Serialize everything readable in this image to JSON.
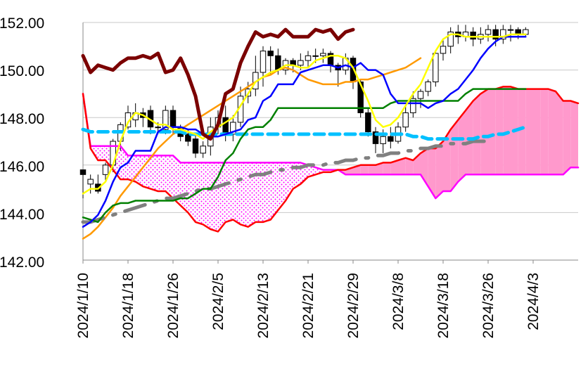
{
  "chart_data": {
    "type": "line",
    "title": "",
    "ylim": [
      142,
      152
    ],
    "y_ticks": [
      "142.00",
      "144.00",
      "146.00",
      "148.00",
      "150.00",
      "152.00"
    ],
    "x_ticks": [
      "2024/1/10",
      "2024/1/18",
      "2024/1/26",
      "2024/2/5",
      "2024/2/13",
      "2024/2/21",
      "2024/2/29",
      "2024/3/8",
      "2024/3/18",
      "2024/3/26",
      "2024/4/3"
    ],
    "grid": true,
    "legend": "none",
    "colors": {
      "tenkan": "#0000ff",
      "kijun": "#008000",
      "chikou": "#7b0000",
      "span_a": "#ff0000",
      "span_b": "#ff00ff",
      "cloud_fill": "#ff99cc",
      "ma_short": "#ffff00",
      "ma_long": "#ff9900",
      "dashed_blue": "#00c0ff",
      "dashed_gray": "#808080"
    },
    "series": [
      {
        "id": "tenkan",
        "values": [
          143.4,
          143.6,
          143.9,
          144.5,
          145.3,
          145.9,
          146.1,
          146.6,
          146.6,
          146.6,
          147.4,
          147.6,
          147.6,
          147.6,
          147.5,
          147.5,
          147.3,
          147.2,
          147.2,
          147.3,
          147.4,
          147.5,
          147.9,
          148.0,
          148.7,
          148.9,
          149.4,
          149.4,
          149.4,
          149.9,
          150.0,
          150.1,
          150.2,
          150.2,
          150.1,
          150.2,
          150.1,
          150.3,
          150.0,
          150.0,
          149.8,
          149.0,
          148.6,
          148.6,
          148.6,
          148.6,
          148.4,
          148.6,
          148.7,
          149.0,
          149.2,
          149.6,
          150.0,
          150.5,
          150.9,
          151.2,
          151.4,
          151.4,
          151.4,
          151.4
        ]
      },
      {
        "id": "kijun",
        "values": [
          143.8,
          143.7,
          143.6,
          144.0,
          144.3,
          144.4,
          144.4,
          144.5,
          144.5,
          144.5,
          144.5,
          144.5,
          144.5,
          144.6,
          144.6,
          144.8,
          145.0,
          145.0,
          145.5,
          146.2,
          146.5,
          147.1,
          147.5,
          147.6,
          147.6,
          147.9,
          148.4,
          148.4,
          148.4,
          148.4,
          148.4,
          148.4,
          148.4,
          148.4,
          148.4,
          148.4,
          148.4,
          148.4,
          148.4,
          148.4,
          148.4,
          148.6,
          148.7,
          148.7,
          148.7,
          148.7,
          148.7,
          148.7,
          148.7,
          148.7,
          148.7,
          149.0,
          149.2,
          149.2,
          149.2,
          149.2,
          149.2,
          149.2,
          149.2,
          149.2
        ]
      },
      {
        "id": "chikou",
        "values": [
          150.6,
          149.9,
          150.2,
          150.1,
          150.0,
          150.3,
          150.5,
          150.5,
          150.6,
          150.5,
          150.7,
          149.9,
          150.0,
          150.5,
          149.8,
          148.9,
          147.3,
          147.1,
          147.7,
          149.0,
          149.2,
          150.3,
          151.0,
          151.6,
          151.4,
          151.5,
          151.4,
          151.7,
          151.4,
          151.4,
          151.4,
          151.7,
          151.6,
          151.7,
          151.3,
          151.6,
          151.7
        ]
      },
      {
        "id": "span_a",
        "x_offset": 0,
        "values": [
          149.0,
          146.7,
          146.2,
          146.2,
          145.8,
          145.4,
          145.4,
          145.3,
          145.1,
          145.0,
          144.9,
          144.9,
          144.6,
          144.3,
          144.0,
          143.6,
          143.5,
          143.3,
          143.2,
          143.6,
          143.7,
          143.5,
          143.4,
          143.6,
          143.6,
          143.7,
          144.1,
          144.5,
          145.0,
          145.2,
          145.5,
          145.6,
          145.7,
          145.7,
          145.8,
          145.8,
          145.9,
          146.0,
          146.0,
          146.0,
          146.1,
          146.1,
          146.2,
          146.3,
          146.2,
          146.5,
          146.7,
          146.7,
          147.0,
          147.5,
          147.9,
          148.3,
          148.7,
          149.0,
          149.2,
          149.2,
          149.3,
          149.3,
          149.2,
          149.2,
          149.2,
          149.2,
          149.2,
          149.1,
          148.7,
          148.7,
          148.6
        ]
      },
      {
        "id": "span_b",
        "x_offset": 0,
        "values": [
          149.0,
          146.8,
          146.8,
          146.8,
          146.8,
          146.8,
          146.4,
          146.4,
          146.4,
          146.4,
          146.4,
          146.4,
          146.4,
          146.1,
          146.1,
          146.1,
          146.1,
          146.1,
          146.1,
          146.1,
          146.1,
          146.1,
          146.1,
          146.1,
          146.1,
          146.1,
          146.1,
          146.1,
          146.1,
          146.1,
          146.0,
          145.9,
          145.8,
          145.8,
          145.8,
          145.6,
          145.6,
          145.6,
          145.6,
          145.6,
          145.6,
          145.6,
          145.6,
          145.6,
          145.6,
          145.6,
          145.1,
          144.6,
          144.9,
          144.9,
          145.3,
          145.6,
          145.6,
          145.6,
          145.6,
          145.6,
          145.6,
          145.6,
          145.6,
          145.6,
          145.6,
          145.6,
          145.6,
          145.6,
          145.6,
          145.9,
          145.9
        ]
      },
      {
        "id": "ma_short",
        "values": [
          144.8,
          145.0,
          145.0,
          145.3,
          146.0,
          147.0,
          147.8,
          148.2,
          148.1,
          147.9,
          147.7,
          147.7,
          147.5,
          147.5,
          147.4,
          147.3,
          147.1,
          147.4,
          147.6,
          147.8,
          148.0,
          148.5,
          149.0,
          149.5,
          149.7,
          149.9,
          150.0,
          150.2,
          150.2,
          150.1,
          150.1,
          150.4,
          150.5,
          150.6,
          150.6,
          150.5,
          150.1,
          149.4,
          148.7,
          147.9,
          147.6,
          147.7,
          148.0,
          148.5,
          149.0,
          149.4,
          150.1,
          150.8,
          151.3,
          151.5,
          151.5,
          151.4,
          151.4,
          151.4,
          151.4,
          151.4,
          151.4,
          151.5,
          151.5,
          151.5
        ]
      },
      {
        "id": "ma_long",
        "values": [
          142.9,
          143.1,
          143.4,
          143.8,
          144.2,
          144.7,
          145.1,
          145.5,
          145.9,
          146.3,
          146.7,
          147.0,
          147.3,
          147.5,
          147.7,
          147.9,
          148.1,
          148.3,
          148.5,
          148.7,
          148.9,
          149.1,
          149.3,
          149.5,
          149.7,
          149.8,
          150.0,
          150.1,
          150.0,
          149.8,
          149.6,
          149.5,
          149.4,
          149.4,
          149.4,
          149.5,
          149.5,
          149.6,
          149.6,
          149.7,
          149.8,
          149.9,
          150.0,
          150.1,
          150.3,
          150.5
        ]
      },
      {
        "id": "dashed_blue",
        "values": [
          147.5,
          147.4,
          147.4,
          147.4,
          147.4,
          147.4,
          147.4,
          147.4,
          147.4,
          147.4,
          147.4,
          147.4,
          147.4,
          147.4,
          147.3,
          147.3,
          147.3,
          147.3,
          147.3,
          147.3,
          147.3,
          147.3,
          147.3,
          147.3,
          147.3,
          147.3,
          147.3,
          147.3,
          147.3,
          147.3,
          147.3,
          147.3,
          147.3,
          147.3,
          147.3,
          147.3,
          147.3,
          147.3,
          147.3,
          147.3,
          147.3,
          147.3,
          147.3,
          147.3,
          147.2,
          147.2,
          147.1,
          147.1,
          147.1,
          147.1,
          147.1,
          147.1,
          147.1,
          147.2,
          147.2,
          147.3,
          147.3,
          147.4,
          147.5,
          147.6
        ]
      },
      {
        "id": "dashed_gray",
        "values": [
          143.6,
          143.6,
          143.7,
          143.8,
          143.9,
          144.0,
          144.1,
          144.2,
          144.3,
          144.4,
          144.5,
          144.6,
          144.6,
          144.7,
          144.8,
          144.9,
          145.0,
          145.0,
          145.1,
          145.2,
          145.3,
          145.4,
          145.5,
          145.6,
          145.6,
          145.7,
          145.8,
          145.8,
          145.9,
          145.9,
          146.0,
          146.0,
          146.0,
          146.1,
          146.1,
          146.2,
          146.2,
          146.3,
          146.3,
          146.4,
          146.4,
          146.5,
          146.5,
          146.6,
          146.6,
          146.7,
          146.7,
          146.8,
          146.8,
          146.9,
          146.9,
          146.9,
          147.0,
          147.0,
          147.0
        ]
      }
    ],
    "candles": [
      [
        145.8,
        145.6,
        144.6,
        145.8
      ],
      [
        145.2,
        145.4,
        144.8,
        145.6
      ],
      [
        145.2,
        144.9,
        144.8,
        145.6
      ],
      [
        145.6,
        146.0,
        145.3,
        146.1
      ],
      [
        146.0,
        147.0,
        145.7,
        147.1
      ],
      [
        147.0,
        147.7,
        146.6,
        147.8
      ],
      [
        147.6,
        148.2,
        147.5,
        148.5
      ],
      [
        147.9,
        148.2,
        147.6,
        148.6
      ],
      [
        148.2,
        148.0,
        147.6,
        148.4
      ],
      [
        148.3,
        147.6,
        147.3,
        148.5
      ],
      [
        147.6,
        147.6,
        147.3,
        147.8
      ],
      [
        147.5,
        148.3,
        147.3,
        148.5
      ],
      [
        148.3,
        147.6,
        147.3,
        148.5
      ],
      [
        147.6,
        147.2,
        147.0,
        147.7
      ],
      [
        147.3,
        147.0,
        146.8,
        147.5
      ],
      [
        147.1,
        146.5,
        146.3,
        147.3
      ],
      [
        146.5,
        146.8,
        146.3,
        147.0
      ],
      [
        146.8,
        147.6,
        146.4,
        148.0
      ],
      [
        147.6,
        148.0,
        147.3,
        148.3
      ],
      [
        148.0,
        147.3,
        147.0,
        148.5
      ],
      [
        147.3,
        147.8,
        147.0,
        148.1
      ],
      [
        147.8,
        148.9,
        147.6,
        149.3
      ],
      [
        148.9,
        149.2,
        148.6,
        149.5
      ],
      [
        149.2,
        149.9,
        148.9,
        150.6
      ],
      [
        149.9,
        150.8,
        149.3,
        151.0
      ],
      [
        150.8,
        150.6,
        149.8,
        151.0
      ],
      [
        150.6,
        150.0,
        149.8,
        150.9
      ],
      [
        150.0,
        150.4,
        149.8,
        150.5
      ],
      [
        150.4,
        150.2,
        149.9,
        150.5
      ],
      [
        150.2,
        150.4,
        150.0,
        150.7
      ],
      [
        150.4,
        150.6,
        150.1,
        150.8
      ],
      [
        150.6,
        150.6,
        150.3,
        150.9
      ],
      [
        150.6,
        150.7,
        150.3,
        150.9
      ],
      [
        150.7,
        150.2,
        149.9,
        150.8
      ],
      [
        150.2,
        150.0,
        149.3,
        150.3
      ],
      [
        150.0,
        150.5,
        149.8,
        150.7
      ],
      [
        150.5,
        149.5,
        149.2,
        150.6
      ],
      [
        149.5,
        148.2,
        148.0,
        149.6
      ],
      [
        148.2,
        147.4,
        147.2,
        148.4
      ],
      [
        147.4,
        146.9,
        146.5,
        147.6
      ],
      [
        146.9,
        147.2,
        146.5,
        147.5
      ],
      [
        147.2,
        147.0,
        146.7,
        147.6
      ],
      [
        147.0,
        147.6,
        146.9,
        147.8
      ],
      [
        147.6,
        148.2,
        147.4,
        148.5
      ],
      [
        148.2,
        148.8,
        148.0,
        149.1
      ],
      [
        148.8,
        149.1,
        148.4,
        149.2
      ],
      [
        149.1,
        149.5,
        148.9,
        149.6
      ],
      [
        149.5,
        150.7,
        149.3,
        150.8
      ],
      [
        150.7,
        151.0,
        150.4,
        151.3
      ],
      [
        151.0,
        151.6,
        150.7,
        151.8
      ],
      [
        151.6,
        151.4,
        151.1,
        151.9
      ],
      [
        151.4,
        151.6,
        151.2,
        151.9
      ],
      [
        151.6,
        151.3,
        151.0,
        151.8
      ],
      [
        151.3,
        151.5,
        151.1,
        151.8
      ],
      [
        151.5,
        151.7,
        151.2,
        151.9
      ],
      [
        151.7,
        151.3,
        151.0,
        151.9
      ],
      [
        151.3,
        151.7,
        151.1,
        151.9
      ],
      [
        151.7,
        151.7,
        151.2,
        151.9
      ],
      [
        151.7,
        151.5,
        151.3,
        151.8
      ],
      [
        151.5,
        151.7,
        151.4,
        151.8
      ]
    ]
  }
}
